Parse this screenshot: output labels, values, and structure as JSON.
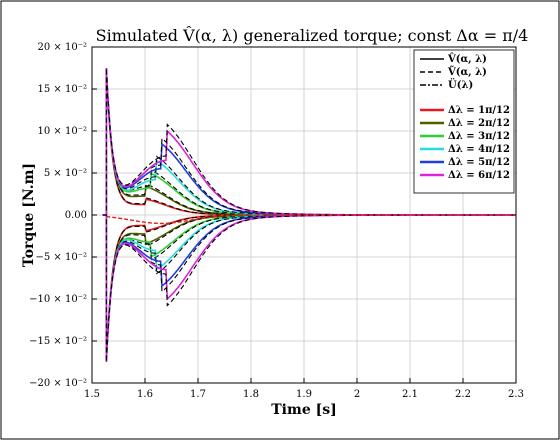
{
  "chart_data": {
    "type": "line",
    "title": "Simulated V̂(α, λ) generalized torque; const Δα = π/4",
    "xlabel": "Time [s]",
    "ylabel": "Torque [N.m]",
    "xlim": [
      1.5,
      2.3
    ],
    "ylim": [
      -0.2,
      0.2
    ],
    "grid": true,
    "legend_position": "top-right",
    "x_ticks": [
      "1.5",
      "1.6",
      "1.7",
      "1.8",
      "1.9",
      "2",
      "2.1",
      "2.2",
      "2.3"
    ],
    "y_ticks": [
      "20 × 10⁻²",
      "15 × 10⁻²",
      "10 × 10⁻²",
      "5 × 10⁻²",
      "0.00",
      "−5 × 10⁻²",
      "−10 × 10⁻²",
      "−15 × 10⁻²",
      "−20 × 10⁻²"
    ],
    "style_legend": [
      {
        "name": "V̂(α, λ)",
        "color": "#000000",
        "dash": "solid"
      },
      {
        "name": "Ṽ(α, λ)",
        "color": "#000000",
        "dash": "dashed"
      },
      {
        "name": "Ü(λ)",
        "color": "#000000",
        "dash": "dashdot"
      }
    ],
    "step_start": 1.527,
    "series": [
      {
        "name": "Δλ = 1π/12",
        "color": "#e41a1c",
        "peak": 0.175,
        "amplitude": 0.012,
        "hump_time": 1.6,
        "hump_width": 0.06
      },
      {
        "name": "Δλ = 2π/12",
        "color": "#4f5f00",
        "peak": 0.175,
        "amplitude": 0.022,
        "hump_time": 1.6,
        "hump_width": 0.065
      },
      {
        "name": "Δλ = 3π/12",
        "color": "#33cc33",
        "peak": 0.175,
        "amplitude": 0.032,
        "hump_time": 1.61,
        "hump_width": 0.07
      },
      {
        "name": "Δλ = 4π/12",
        "color": "#22dddd",
        "peak": 0.175,
        "amplitude": 0.042,
        "hump_time": 1.62,
        "hump_width": 0.07
      },
      {
        "name": "Δλ = 5π/12",
        "color": "#1f3fdd",
        "peak": 0.175,
        "amplitude": 0.055,
        "hump_time": 1.63,
        "hump_width": 0.075
      },
      {
        "name": "Δλ = 6π/12",
        "color": "#dd22dd",
        "peak": 0.175,
        "amplitude": 0.065,
        "hump_time": 1.64,
        "hump_width": 0.08
      }
    ]
  }
}
